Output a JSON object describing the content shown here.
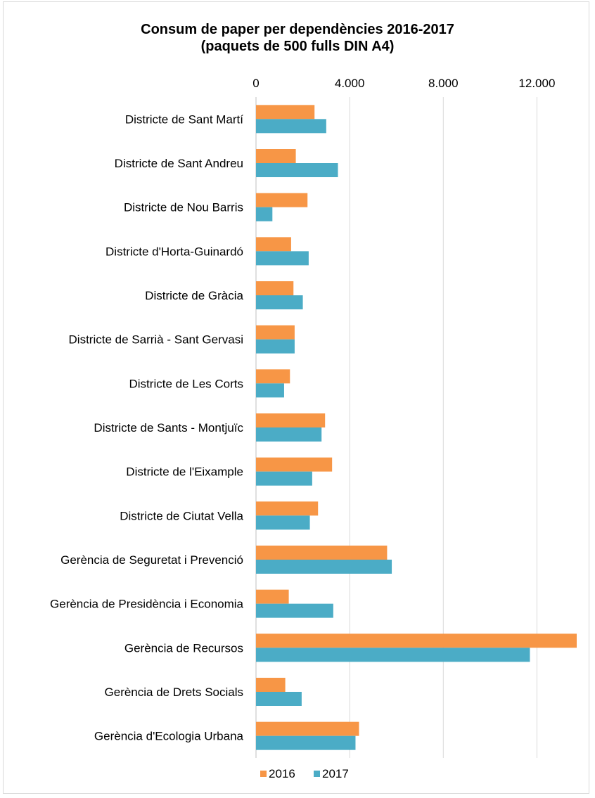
{
  "chart_data": {
    "type": "bar",
    "orientation": "horizontal",
    "title": "Consum de paper per dependències 2016-2017",
    "subtitle": "(paquets de 500 fulls DIN A4)",
    "xlim": [
      0,
      14000
    ],
    "x_ticks": [
      0,
      4000,
      8000,
      12000
    ],
    "x_tick_labels": [
      "0",
      "4.000",
      "8.000",
      "12.000"
    ],
    "grid": true,
    "legend_position": "bottom",
    "categories": [
      "Districte de Sant Martí",
      "Districte de Sant Andreu",
      "Districte de Nou Barris",
      "Districte d'Horta-Guinardó",
      "Districte de Gràcia",
      "Districte de Sarrià - Sant Gervasi",
      "Districte de Les Corts",
      "Districte de Sants - Montjuïc",
      "Districte de l'Eixample",
      "Districte de Ciutat Vella",
      "Gerència de Seguretat i Prevenció",
      "Gerència de Presidència i Economia",
      "Gerència de Recursos",
      "Gerència de Drets Socials",
      "Gerència d'Ecologia Urbana"
    ],
    "series": [
      {
        "name": "2016",
        "color": "#f79646",
        "values": [
          2500,
          1700,
          2200,
          1500,
          1600,
          1650,
          1450,
          2950,
          3250,
          2650,
          5600,
          1400,
          13700,
          1250,
          4400
        ]
      },
      {
        "name": "2017",
        "color": "#4bacc6",
        "values": [
          3000,
          3500,
          700,
          2250,
          2000,
          1650,
          1200,
          2800,
          2400,
          2300,
          5800,
          3300,
          11700,
          1950,
          4250
        ]
      }
    ]
  }
}
